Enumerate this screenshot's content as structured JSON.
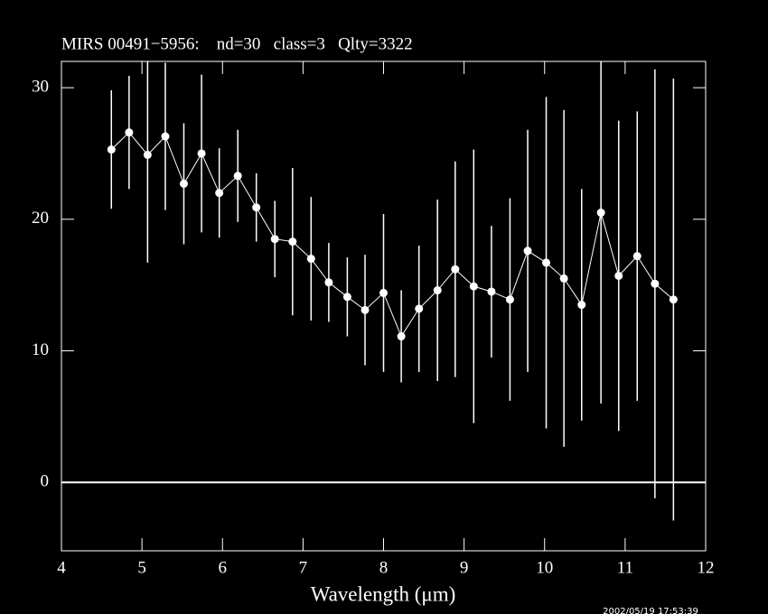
{
  "chart_data": {
    "type": "errorbar-line",
    "title": "MIRS 00491−5956:    nd=30   class=3   Qlty=3322",
    "x_label": "Wavelength (μm)",
    "timestamp": "2002/05/19 17:53:39",
    "x": [
      4.62,
      4.84,
      5.07,
      5.29,
      5.52,
      5.74,
      5.96,
      6.19,
      6.42,
      6.65,
      6.87,
      7.1,
      7.32,
      7.55,
      7.77,
      8.0,
      8.22,
      8.44,
      8.67,
      8.89,
      9.12,
      9.34,
      9.57,
      9.79,
      10.02,
      10.24,
      10.46,
      10.7,
      10.92,
      11.15,
      11.37,
      11.6
    ],
    "series": [
      {
        "color": "#ffffff",
        "values": [
          25.3,
          26.6,
          24.9,
          26.3,
          22.7,
          25.0,
          22.0,
          23.3,
          20.9,
          18.5,
          18.3,
          17.0,
          15.2,
          14.1,
          13.1,
          14.4,
          11.1,
          13.2,
          14.6,
          16.2,
          14.9,
          14.5,
          13.9,
          17.6,
          16.7,
          15.5,
          13.5,
          20.5,
          15.7,
          17.2,
          15.1,
          13.9
        ],
        "errors": [
          4.5,
          4.3,
          8.2,
          5.6,
          4.6,
          6.0,
          3.4,
          3.5,
          2.6,
          2.9,
          5.6,
          4.7,
          3.0,
          3.0,
          4.2,
          6.0,
          3.5,
          4.8,
          6.9,
          8.2,
          10.4,
          5.0,
          7.7,
          9.2,
          12.6,
          12.8,
          8.8,
          14.5,
          11.8,
          11.0,
          16.3,
          16.8
        ]
      }
    ],
    "xlim": [
      4,
      12
    ],
    "xticks": [
      4,
      5,
      6,
      7,
      8,
      9,
      10,
      11,
      12
    ],
    "ylim": [
      -5.2,
      32
    ],
    "yticks": [
      0,
      10,
      20,
      30
    ],
    "reference_line": 0
  }
}
